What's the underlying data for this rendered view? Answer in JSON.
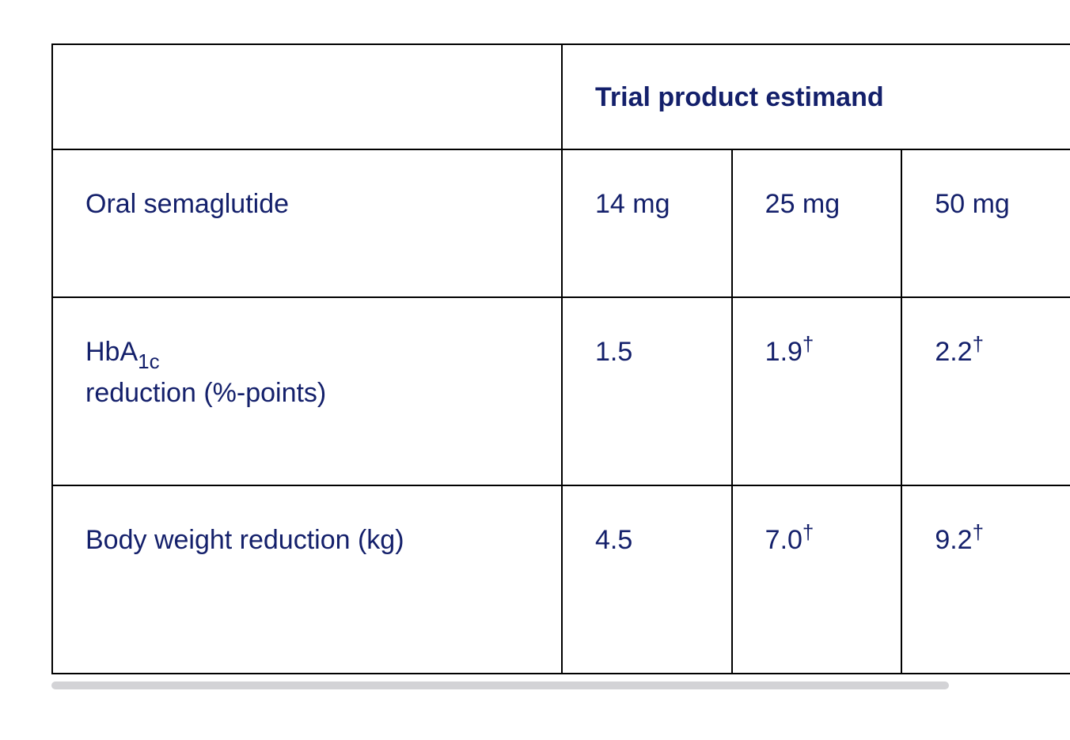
{
  "table": {
    "header": [
      "Trial product estimand"
    ],
    "rows": [
      [
        {
          "text": "Oral semaglutide"
        },
        {
          "text": "14 mg"
        },
        {
          "text": "25 mg"
        },
        {
          "text": "50 mg"
        }
      ],
      [
        {
          "text": "HbA",
          "sub": "1c",
          "after": "reduction (%-points)"
        },
        {
          "text": "1.5"
        },
        {
          "text": "1.9",
          "sup": "†"
        },
        {
          "text": "2.2",
          "sup": "†"
        }
      ],
      [
        {
          "text": "Body weight reduction (kg)"
        },
        {
          "text": "4.5"
        },
        {
          "text": "7.0",
          "sup": "†"
        },
        {
          "text": "9.2",
          "sup": "†"
        }
      ]
    ]
  }
}
